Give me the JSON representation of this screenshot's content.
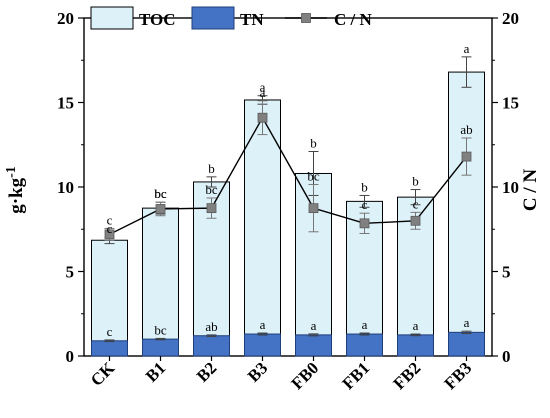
{
  "chart_data": {
    "type": "bar+line",
    "categories": [
      "CK",
      "B1",
      "B2",
      "B3",
      "FB0",
      "FB1",
      "FB2",
      "FB3"
    ],
    "ylabel": "g·kg",
    "ylabel_sup": "-1",
    "y2label": "C / N",
    "ylim": [
      0,
      20
    ],
    "y2lim": [
      0,
      20
    ],
    "yticks": [
      "0",
      "5",
      "10",
      "15",
      "20"
    ],
    "y2ticks": [
      "0",
      "5",
      "10",
      "15",
      "20"
    ],
    "grid": false,
    "legend_position": "top-left",
    "series": [
      {
        "name": "TOC",
        "kind": "bar",
        "axis": "left",
        "color": "#ddf1f8",
        "edge": "#000000",
        "values": [
          6.85,
          8.75,
          10.3,
          15.15,
          10.8,
          9.15,
          9.4,
          16.8
        ],
        "errors": [
          0.2,
          0.35,
          0.3,
          0.25,
          1.3,
          0.35,
          0.45,
          0.9
        ],
        "significance": [
          "c",
          "bc",
          "b",
          "a",
          "b",
          "b",
          "b",
          "a"
        ]
      },
      {
        "name": "TN",
        "kind": "bar",
        "axis": "left",
        "color": "#4472c4",
        "edge": "#1f3f7a",
        "values": [
          0.9,
          1.0,
          1.2,
          1.3,
          1.25,
          1.3,
          1.25,
          1.4
        ],
        "errors": [
          0.05,
          0.04,
          0.05,
          0.06,
          0.06,
          0.06,
          0.05,
          0.07
        ],
        "significance": [
          "c",
          "bc",
          "ab",
          "a",
          "a",
          "a",
          "a",
          "a"
        ]
      },
      {
        "name": "C / N",
        "kind": "line",
        "axis": "right",
        "color": "#808080",
        "values": [
          7.2,
          8.7,
          8.75,
          14.1,
          8.75,
          7.85,
          8.0,
          11.8
        ],
        "errors": [
          0.35,
          0.4,
          0.6,
          1.0,
          1.4,
          0.6,
          0.5,
          1.1
        ],
        "significance": [
          "c",
          "bc",
          "bc",
          "a",
          "bc",
          "c",
          "c",
          "ab"
        ]
      }
    ]
  }
}
